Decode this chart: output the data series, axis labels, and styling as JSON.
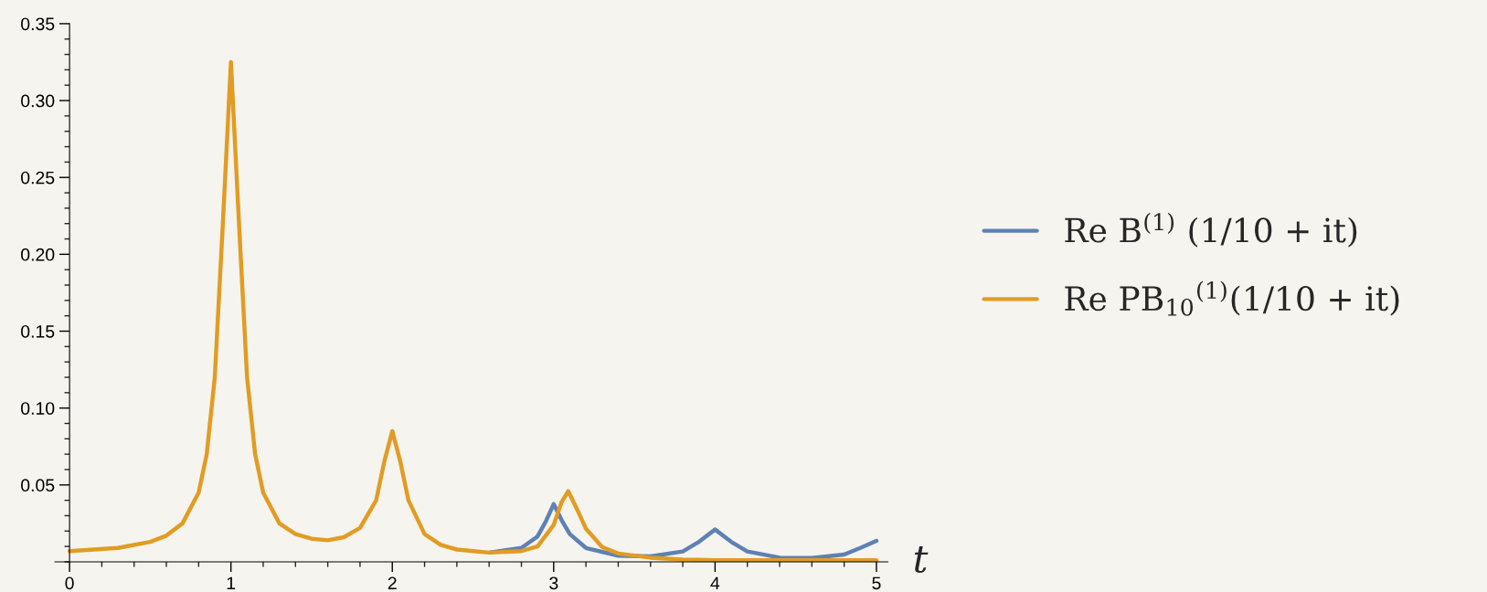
{
  "chart_data": {
    "type": "line",
    "xlabel": "t",
    "xlim": [
      -0.09,
      5.07
    ],
    "xticks": [
      0,
      1,
      2,
      3,
      4,
      5
    ],
    "ylim": [
      0,
      0.35
    ],
    "yticks": [
      0.05,
      {
        "value": 0.1,
        "label": "0.10"
      },
      0.15,
      {
        "value": 0.2,
        "label": "0.20"
      },
      0.25,
      {
        "value": 0.3,
        "label": "0.30"
      },
      0.35
    ],
    "grid": false,
    "legend": "right",
    "marker": "none",
    "line_style": "solid",
    "series": [
      {
        "name": "Re B$^{(1)}$ (1/10 + it)",
        "color": "#5e81b5",
        "x": [
          2.6,
          2.8,
          2.9,
          2.95,
          3.0,
          3.05,
          3.1,
          3.2,
          3.4,
          3.6,
          3.8,
          3.9,
          4.0,
          4.1,
          4.2,
          4.4,
          4.6,
          4.8,
          4.9,
          5.0
        ],
        "values": [
          0.006,
          0.009,
          0.0165,
          0.026,
          0.0375,
          0.027,
          0.018,
          0.009,
          0.004,
          0.0035,
          0.0067,
          0.013,
          0.021,
          0.013,
          0.0067,
          0.0027,
          0.0025,
          0.0047,
          0.009,
          0.0136
        ]
      },
      {
        "name": "Re PB$_{10}$$^{(1)}$(1/10 + it)",
        "color": "#e19c24",
        "x": [
          0,
          0.3,
          0.5,
          0.6,
          0.7,
          0.8,
          0.85,
          0.9,
          0.95,
          1.0,
          1.05,
          1.1,
          1.15,
          1.2,
          1.3,
          1.4,
          1.5,
          1.6,
          1.7,
          1.8,
          1.9,
          1.95,
          2.0,
          2.05,
          2.1,
          2.2,
          2.3,
          2.4,
          2.5,
          2.6,
          2.8,
          2.9,
          3.0,
          3.05,
          3.09,
          3.15,
          3.2,
          3.3,
          3.4,
          3.6,
          3.8,
          4.0,
          4.5,
          5.0
        ],
        "values": [
          0.007,
          0.009,
          0.013,
          0.017,
          0.025,
          0.045,
          0.07,
          0.12,
          0.22,
          0.325,
          0.22,
          0.12,
          0.07,
          0.045,
          0.025,
          0.018,
          0.015,
          0.014,
          0.016,
          0.022,
          0.04,
          0.065,
          0.085,
          0.065,
          0.04,
          0.018,
          0.011,
          0.008,
          0.007,
          0.006,
          0.007,
          0.01,
          0.024,
          0.039,
          0.046,
          0.033,
          0.0215,
          0.0096,
          0.0054,
          0.0027,
          0.0015,
          0.001,
          0.001,
          0.001
        ]
      }
    ]
  }
}
